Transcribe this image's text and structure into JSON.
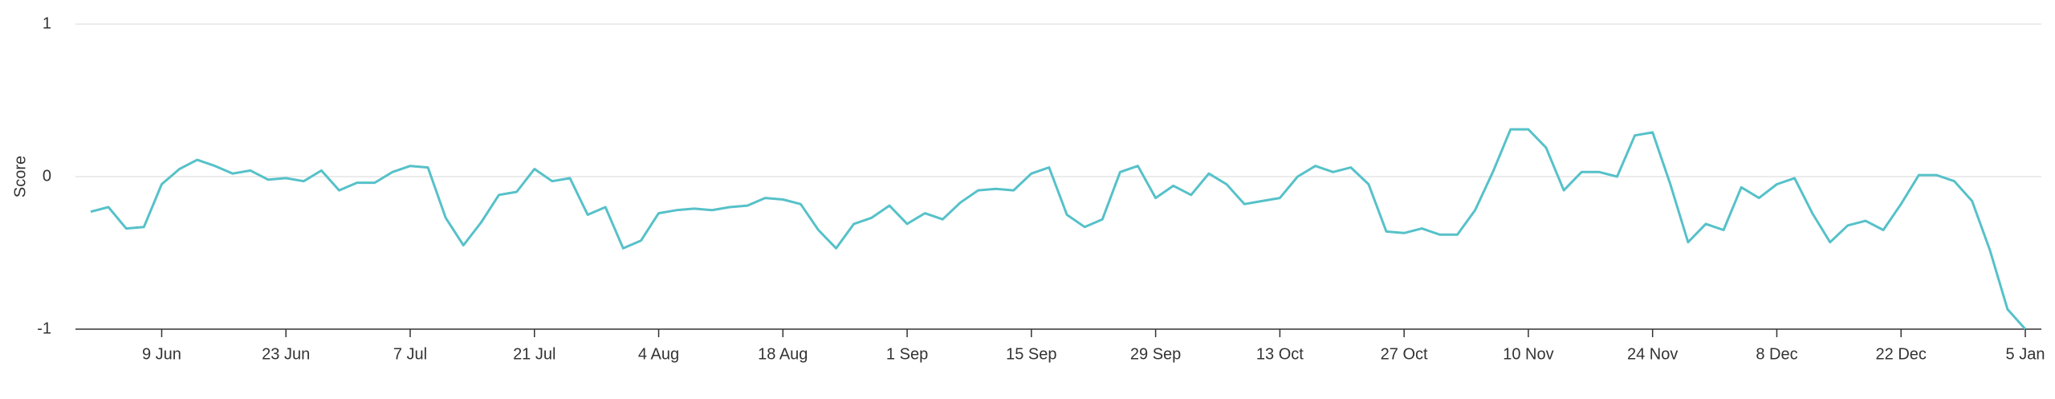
{
  "chart_data": {
    "type": "line",
    "y_label": "Score",
    "categories": [
      null,
      null,
      null,
      null,
      "9 Jun",
      null,
      null,
      null,
      null,
      null,
      null,
      "23 Jun",
      null,
      null,
      null,
      null,
      null,
      null,
      "7 Jul",
      null,
      null,
      null,
      null,
      null,
      null,
      "21 Jul",
      null,
      null,
      null,
      null,
      null,
      null,
      "4 Aug",
      null,
      null,
      null,
      null,
      null,
      null,
      "18 Aug",
      null,
      null,
      null,
      null,
      null,
      null,
      "1 Sep",
      null,
      null,
      null,
      null,
      null,
      null,
      "15 Sep",
      null,
      null,
      null,
      null,
      null,
      null,
      "29 Sep",
      null,
      null,
      null,
      null,
      null,
      null,
      "13 Oct",
      null,
      null,
      null,
      null,
      null,
      null,
      "27 Oct",
      null,
      null,
      null,
      null,
      null,
      null,
      "10 Nov",
      null,
      null,
      null,
      null,
      null,
      null,
      "24 Nov",
      null,
      null,
      null,
      null,
      null,
      null,
      "8 Dec",
      null,
      null,
      null,
      null,
      null,
      null,
      "22 Dec",
      null,
      null,
      null,
      null,
      null,
      null,
      "5 Jan"
    ],
    "series": [
      {
        "color": "#56c1c9",
        "values": [
          -0.23,
          -0.2,
          -0.34,
          -0.33,
          -0.05,
          0.05,
          0.11,
          0.07,
          0.02,
          0.04,
          -0.02,
          -0.01,
          -0.03,
          0.04,
          -0.09,
          -0.04,
          -0.04,
          0.03,
          0.07,
          0.06,
          -0.27,
          -0.45,
          -0.3,
          -0.12,
          -0.1,
          0.05,
          -0.03,
          -0.01,
          -0.25,
          -0.2,
          -0.47,
          -0.42,
          -0.24,
          -0.22,
          -0.21,
          -0.22,
          -0.2,
          -0.19,
          -0.14,
          -0.15,
          -0.18,
          -0.35,
          -0.47,
          -0.31,
          -0.27,
          -0.19,
          -0.31,
          -0.24,
          -0.28,
          -0.17,
          -0.09,
          -0.08,
          -0.09,
          0.02,
          0.06,
          -0.25,
          -0.33,
          -0.28,
          0.03,
          0.07,
          -0.14,
          -0.06,
          -0.12,
          0.02,
          -0.05,
          -0.18,
          -0.16,
          -0.14,
          0,
          0.07,
          0.03,
          0.06,
          -0.05,
          -0.36,
          -0.37,
          -0.34,
          -0.38,
          -0.38,
          -0.22,
          0.03,
          0.31,
          0.31,
          0.19,
          -0.09,
          0.03,
          0.03,
          0,
          0.27,
          0.29,
          -0.05,
          -0.43,
          -0.31,
          -0.35,
          -0.07,
          -0.14,
          -0.05,
          -0.01,
          -0.24,
          -0.43,
          -0.32,
          -0.29,
          -0.35,
          -0.18,
          0.01,
          0.01,
          -0.03,
          -0.16,
          -0.48,
          -0.87,
          -1
        ]
      }
    ],
    "ylim": [
      -1,
      1
    ],
    "yticks": [
      -1,
      0,
      1
    ],
    "grid": true
  }
}
